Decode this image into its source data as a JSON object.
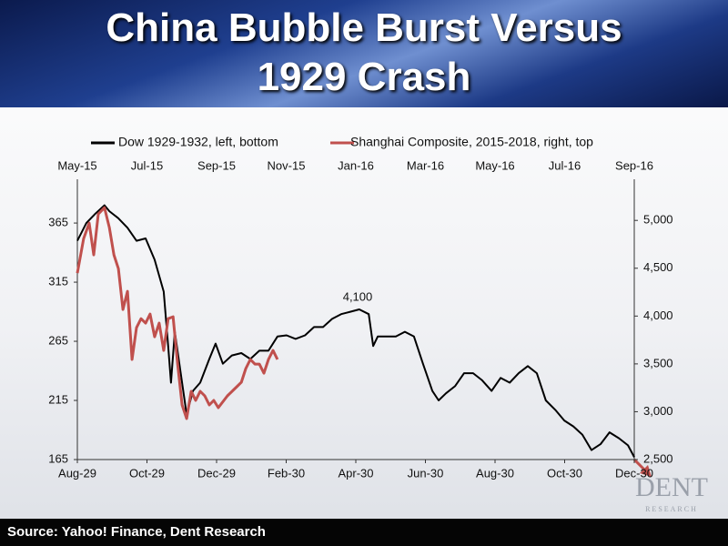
{
  "chart_data": {
    "type": "line",
    "title": "China Bubble Burst Versus 1929 Crash",
    "annotation": "4,100",
    "xlim": [
      0,
      16
    ],
    "xticks": [
      {
        "value": 0,
        "label": "Aug-29"
      },
      {
        "value": 2,
        "label": "Oct-29"
      },
      {
        "value": 4,
        "label": "Dec-29"
      },
      {
        "value": 6,
        "label": "Feb-30"
      },
      {
        "value": 8,
        "label": "Apr-30"
      },
      {
        "value": 10,
        "label": "Jun-30"
      },
      {
        "value": 12,
        "label": "Aug-30"
      },
      {
        "value": 14,
        "label": "Oct-30"
      },
      {
        "value": 16,
        "label": "Dec-30"
      }
    ],
    "x2lim": [
      0,
      16
    ],
    "x2ticks": [
      {
        "value": 0,
        "label": "May-15"
      },
      {
        "value": 2,
        "label": "Jul-15"
      },
      {
        "value": 4,
        "label": "Sep-15"
      },
      {
        "value": 6,
        "label": "Nov-15"
      },
      {
        "value": 8,
        "label": "Jan-16"
      },
      {
        "value": 10,
        "label": "Mar-16"
      },
      {
        "value": 12,
        "label": "May-16"
      },
      {
        "value": 14,
        "label": "Jul-16"
      },
      {
        "value": 16,
        "label": "Sep-16"
      }
    ],
    "ylim": [
      165,
      402
    ],
    "yticks": [
      165,
      215,
      265,
      315,
      365
    ],
    "y2lim": [
      2500,
      5430
    ],
    "y2ticks": [
      {
        "value": 2500,
        "label": "2,500"
      },
      {
        "value": 3000,
        "label": "3,000"
      },
      {
        "value": 3500,
        "label": "3,500"
      },
      {
        "value": 4000,
        "label": "4,000"
      },
      {
        "value": 4500,
        "label": "4,500"
      },
      {
        "value": 5000,
        "label": "5,000"
      }
    ],
    "series": [
      {
        "name": "Dow 1929-1932, left, bottom",
        "color": "#000000",
        "x": [
          0,
          0.26,
          0.52,
          0.78,
          0.92,
          1.18,
          1.44,
          1.7,
          1.96,
          2.22,
          2.48,
          2.61,
          2.69,
          2.8,
          2.93,
          3.14,
          3.32,
          3.53,
          3.79,
          3.97,
          4.18,
          4.44,
          4.71,
          4.97,
          5.23,
          5.49,
          5.75,
          6.01,
          6.27,
          6.54,
          6.8,
          7.06,
          7.32,
          7.58,
          7.84,
          8.1,
          8.37,
          8.5,
          8.63,
          8.89,
          9.15,
          9.41,
          9.67,
          9.93,
          10.2,
          10.38,
          10.59,
          10.85,
          11.11,
          11.37,
          11.63,
          11.9,
          12.16,
          12.42,
          12.68,
          12.94,
          13.2,
          13.46,
          13.73,
          13.99,
          14.25,
          14.51,
          14.77,
          15.03,
          15.29,
          15.56,
          15.82,
          16
        ],
        "values": [
          350,
          365,
          373,
          380,
          375,
          369,
          361,
          350,
          352,
          334,
          307,
          261,
          230,
          273,
          246,
          203,
          223,
          230,
          250,
          263,
          246,
          253,
          255,
          250,
          257,
          257,
          269,
          270,
          267,
          270,
          277,
          277,
          284,
          288,
          290,
          292,
          288,
          261,
          269,
          269,
          269,
          273,
          269,
          246,
          223,
          215,
          221,
          227,
          238,
          238,
          232,
          223,
          234,
          230,
          238,
          244,
          238,
          215,
          207,
          198,
          193,
          186,
          173,
          178,
          188,
          183,
          177,
          167
        ]
      },
      {
        "name": "Shanghai Composite, 2015-2018, right, top",
        "color": "#c0504d",
        "axis": "y2",
        "x": [
          0,
          0.18,
          0.34,
          0.47,
          0.6,
          0.78,
          0.92,
          1.05,
          1.18,
          1.31,
          1.44,
          1.57,
          1.7,
          1.83,
          1.96,
          2.09,
          2.22,
          2.35,
          2.48,
          2.61,
          2.75,
          2.88,
          3.01,
          3.14,
          3.27,
          3.4,
          3.53,
          3.66,
          3.79,
          3.92,
          4.05,
          4.31,
          4.58,
          4.71,
          4.84,
          4.97,
          5.1,
          5.23,
          5.36,
          5.49,
          5.62,
          5.75
        ],
        "values": [
          4449,
          4810,
          4972,
          4639,
          5067,
          5133,
          4924,
          4639,
          4496,
          4069,
          4259,
          3546,
          3878,
          3973,
          3926,
          4021,
          3783,
          3926,
          3641,
          3973,
          3993,
          3498,
          3071,
          2928,
          3213,
          3118,
          3213,
          3166,
          3071,
          3118,
          3042,
          3166,
          3261,
          3308,
          3451,
          3546,
          3498,
          3498,
          3403,
          3546,
          3641,
          3546
        ]
      }
    ]
  },
  "footer": {
    "source": "Source: Yahoo! Finance, Dent Research"
  },
  "logo": {
    "name": "DENT",
    "tagline": "RESEARCH"
  }
}
